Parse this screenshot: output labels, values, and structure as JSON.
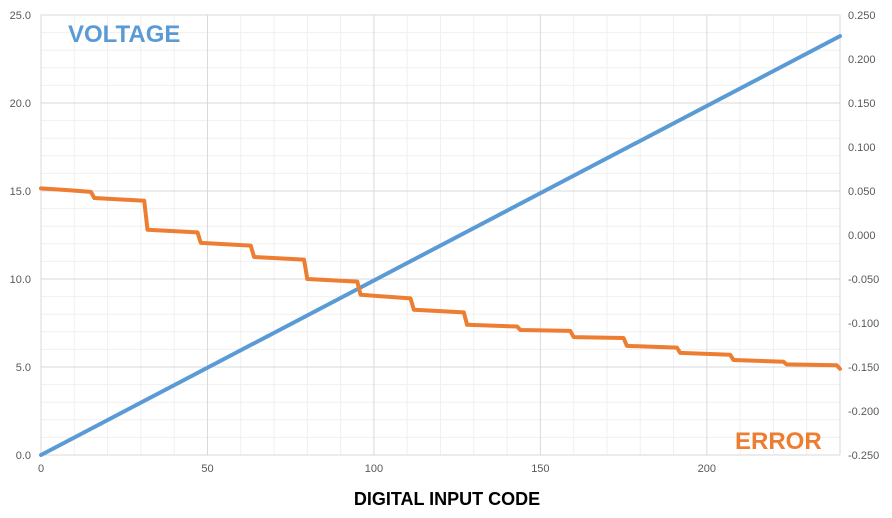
{
  "chart_data": {
    "type": "line",
    "title": "",
    "xlabel": "DIGITAL INPUT CODE",
    "xlim": [
      0,
      240
    ],
    "x_ticks": [
      "0",
      "50",
      "100",
      "150",
      "200"
    ],
    "x_tick_values": [
      0,
      50,
      100,
      150,
      200
    ],
    "y_left": {
      "ylim": [
        0,
        25
      ],
      "ticks": [
        "0.0",
        "5.0",
        "10.0",
        "15.0",
        "20.0",
        "25.0"
      ],
      "tick_values": [
        0,
        5,
        10,
        15,
        20,
        25
      ]
    },
    "y_right": {
      "ylim": [
        -0.25,
        0.25
      ],
      "ticks": [
        "-0.250",
        "-0.200",
        "-0.150",
        "-0.100",
        "-0.050",
        "0.000",
        "0.050",
        "0.100",
        "0.150",
        "0.200",
        "0.250"
      ],
      "tick_values": [
        -0.25,
        -0.2,
        -0.15,
        -0.1,
        -0.05,
        0,
        0.05,
        0.1,
        0.15,
        0.2,
        0.25
      ]
    },
    "grid": true,
    "series": [
      {
        "name": "VOLTAGE",
        "axis": "left",
        "color": "#5b9bd5",
        "x": [
          0,
          240
        ],
        "y": [
          0.0,
          23.8
        ]
      },
      {
        "name": "ERROR",
        "axis": "right",
        "color": "#ed7d31",
        "step": true,
        "x": [
          0,
          8,
          15,
          16,
          31,
          32,
          47,
          48,
          63,
          64,
          79,
          80,
          95,
          96,
          111,
          112,
          127,
          128,
          143,
          144,
          159,
          160,
          175,
          176,
          191,
          192,
          207,
          208,
          223,
          224,
          239,
          240
        ],
        "y": [
          0.053,
          0.051,
          0.049,
          0.042,
          0.039,
          0.006,
          0.003,
          -0.009,
          -0.012,
          -0.025,
          -0.028,
          -0.05,
          -0.053,
          -0.068,
          -0.072,
          -0.085,
          -0.088,
          -0.102,
          -0.104,
          -0.108,
          -0.109,
          -0.116,
          -0.117,
          -0.126,
          -0.128,
          -0.134,
          -0.136,
          -0.142,
          -0.144,
          -0.147,
          -0.148,
          -0.152
        ]
      }
    ]
  }
}
